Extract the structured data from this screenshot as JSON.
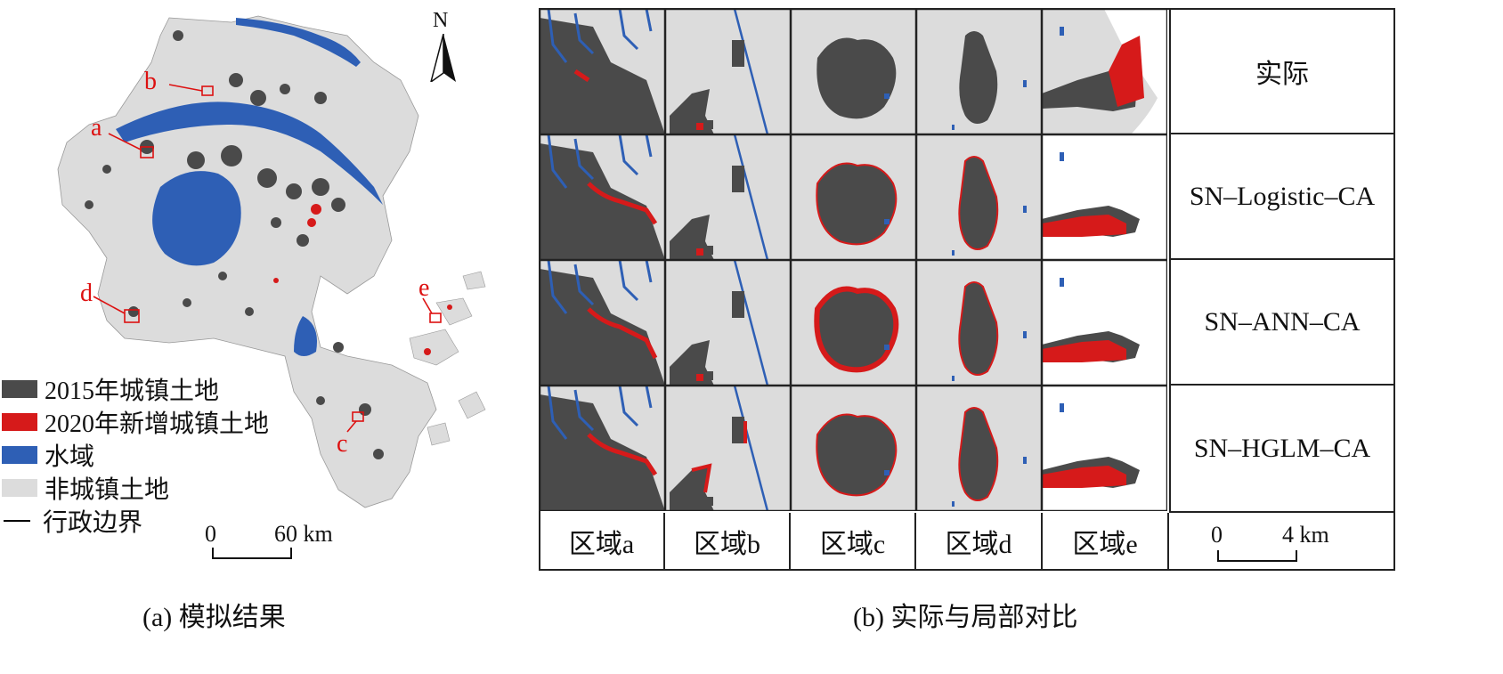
{
  "left": {
    "north": "N",
    "region_letters": [
      "a",
      "b",
      "c",
      "d",
      "e"
    ],
    "legend": [
      {
        "label": "2015年城镇土地",
        "color": "#4a4a4a",
        "kind": "box"
      },
      {
        "label": "2020年新增城镇土地",
        "color": "#d61a1a",
        "kind": "box"
      },
      {
        "label": "水域",
        "color": "#2e5fb5",
        "kind": "box"
      },
      {
        "label": "非城镇土地",
        "color": "#dcdcdc",
        "kind": "box"
      },
      {
        "label": "行政边界",
        "color": "#000000",
        "kind": "line"
      }
    ],
    "scale": {
      "start": "0",
      "end": "60 km"
    },
    "caption": "(a) 模拟结果"
  },
  "right": {
    "row_labels": [
      "实际",
      "SN–Logistic–CA",
      "SN–ANN–CA",
      "SN–HGLM–CA"
    ],
    "col_labels": [
      "区域a",
      "区域b",
      "区域c",
      "区域d",
      "区域e"
    ],
    "scale": {
      "start": "0",
      "end": "4 km"
    },
    "caption": "(b) 实际与局部对比"
  },
  "colors": {
    "urban_2015": "#4a4a4a",
    "urban_new_2020": "#d61a1a",
    "water": "#2e5fb5",
    "non_urban": "#dcdcdc",
    "boundary": "#000000"
  }
}
